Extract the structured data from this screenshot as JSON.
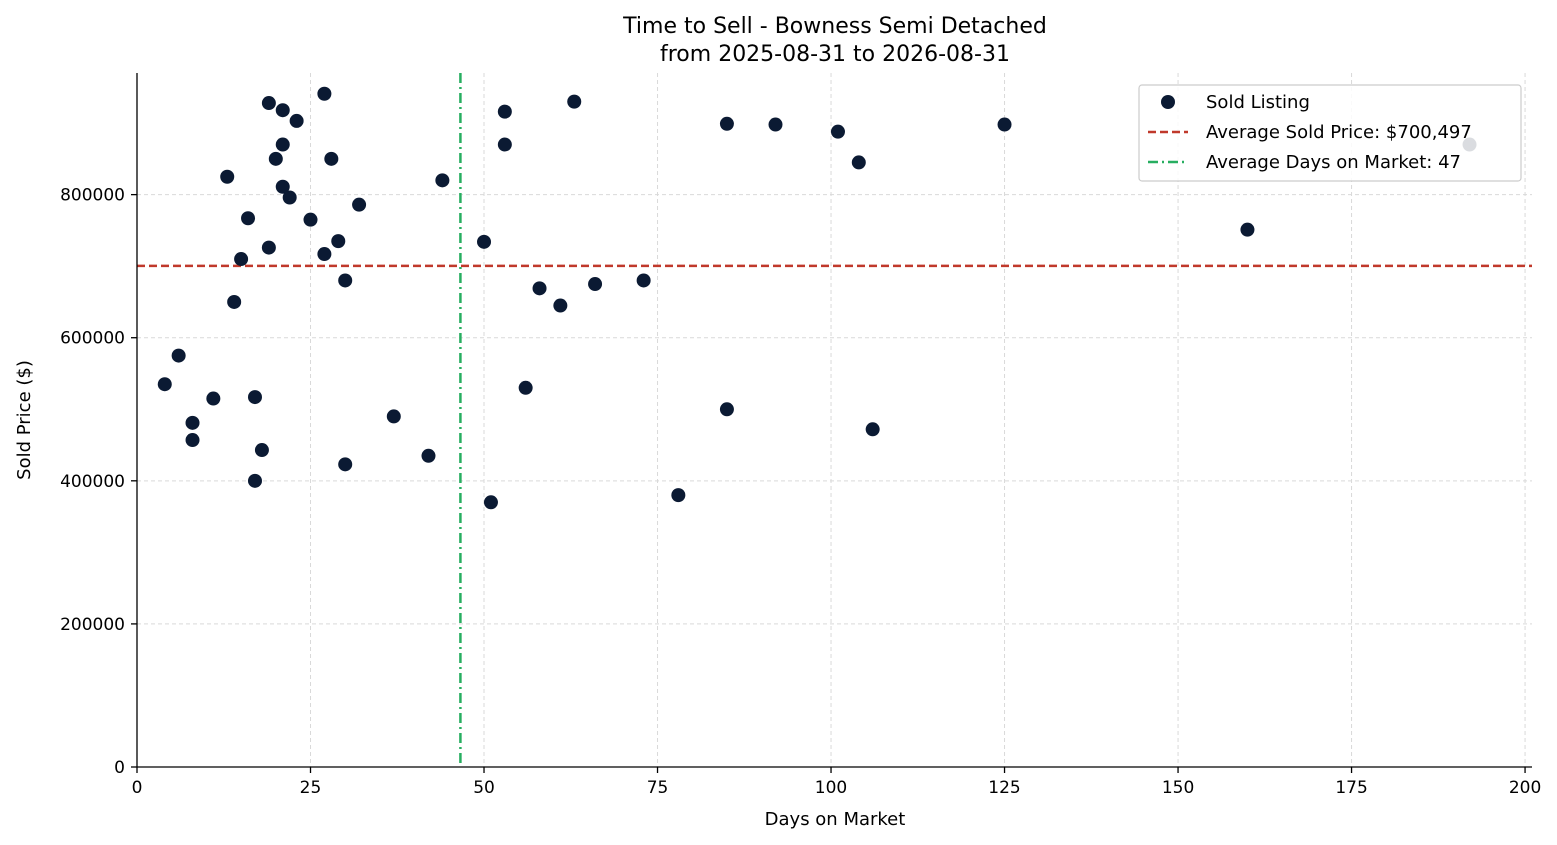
{
  "chart_data": {
    "type": "scatter",
    "title_line1": "Time to Sell - Bowness Semi Detached",
    "title_line2": "from 2025-08-31 to 2026-08-31",
    "xlabel": "Days on Market",
    "ylabel": "Sold Price ($)",
    "xlim": [
      0,
      201
    ],
    "ylim": [
      0,
      970000
    ],
    "xticks": [
      0,
      25,
      50,
      75,
      100,
      125,
      150,
      175,
      200
    ],
    "yticks": [
      0,
      200000,
      400000,
      600000,
      800000
    ],
    "grid": true,
    "legend_position": "top-right",
    "colors": {
      "points": "#0b1a33",
      "avg_price_line": "#c0392b",
      "avg_days_line": "#27ae60"
    },
    "legend": {
      "points": "Sold Listing",
      "avg_price": "Average Sold Price: $700,497",
      "avg_days": "Average Days on Market: 47"
    },
    "avg_price": 700497,
    "avg_days": 46.6,
    "points": [
      {
        "x": 4,
        "y": 535000
      },
      {
        "x": 6,
        "y": 575000
      },
      {
        "x": 8,
        "y": 481000
      },
      {
        "x": 8,
        "y": 457000
      },
      {
        "x": 11,
        "y": 515000
      },
      {
        "x": 13,
        "y": 825000
      },
      {
        "x": 14,
        "y": 650000
      },
      {
        "x": 15,
        "y": 710000
      },
      {
        "x": 16,
        "y": 767000
      },
      {
        "x": 17,
        "y": 517000
      },
      {
        "x": 17,
        "y": 400000
      },
      {
        "x": 18,
        "y": 443000
      },
      {
        "x": 19,
        "y": 928000
      },
      {
        "x": 19,
        "y": 726000
      },
      {
        "x": 20,
        "y": 850000
      },
      {
        "x": 21,
        "y": 918000
      },
      {
        "x": 21,
        "y": 870000
      },
      {
        "x": 21,
        "y": 811000
      },
      {
        "x": 22,
        "y": 796000
      },
      {
        "x": 23,
        "y": 903000
      },
      {
        "x": 25,
        "y": 765000
      },
      {
        "x": 27,
        "y": 941000
      },
      {
        "x": 27,
        "y": 717000
      },
      {
        "x": 28,
        "y": 850000
      },
      {
        "x": 29,
        "y": 735000
      },
      {
        "x": 30,
        "y": 680000
      },
      {
        "x": 30,
        "y": 423000
      },
      {
        "x": 32,
        "y": 786000
      },
      {
        "x": 37,
        "y": 490000
      },
      {
        "x": 42,
        "y": 435000
      },
      {
        "x": 44,
        "y": 820000
      },
      {
        "x": 50,
        "y": 734000
      },
      {
        "x": 51,
        "y": 370000
      },
      {
        "x": 53,
        "y": 916000
      },
      {
        "x": 53,
        "y": 870000
      },
      {
        "x": 56,
        "y": 530000
      },
      {
        "x": 58,
        "y": 669000
      },
      {
        "x": 61,
        "y": 645000
      },
      {
        "x": 63,
        "y": 930000
      },
      {
        "x": 66,
        "y": 675000
      },
      {
        "x": 73,
        "y": 680000
      },
      {
        "x": 78,
        "y": 380000
      },
      {
        "x": 85,
        "y": 899000
      },
      {
        "x": 85,
        "y": 500000
      },
      {
        "x": 92,
        "y": 898000
      },
      {
        "x": 101,
        "y": 888000
      },
      {
        "x": 104,
        "y": 845000
      },
      {
        "x": 106,
        "y": 472000
      },
      {
        "x": 125,
        "y": 898000
      },
      {
        "x": 160,
        "y": 751000
      },
      {
        "x": 192,
        "y": 870000
      }
    ]
  }
}
